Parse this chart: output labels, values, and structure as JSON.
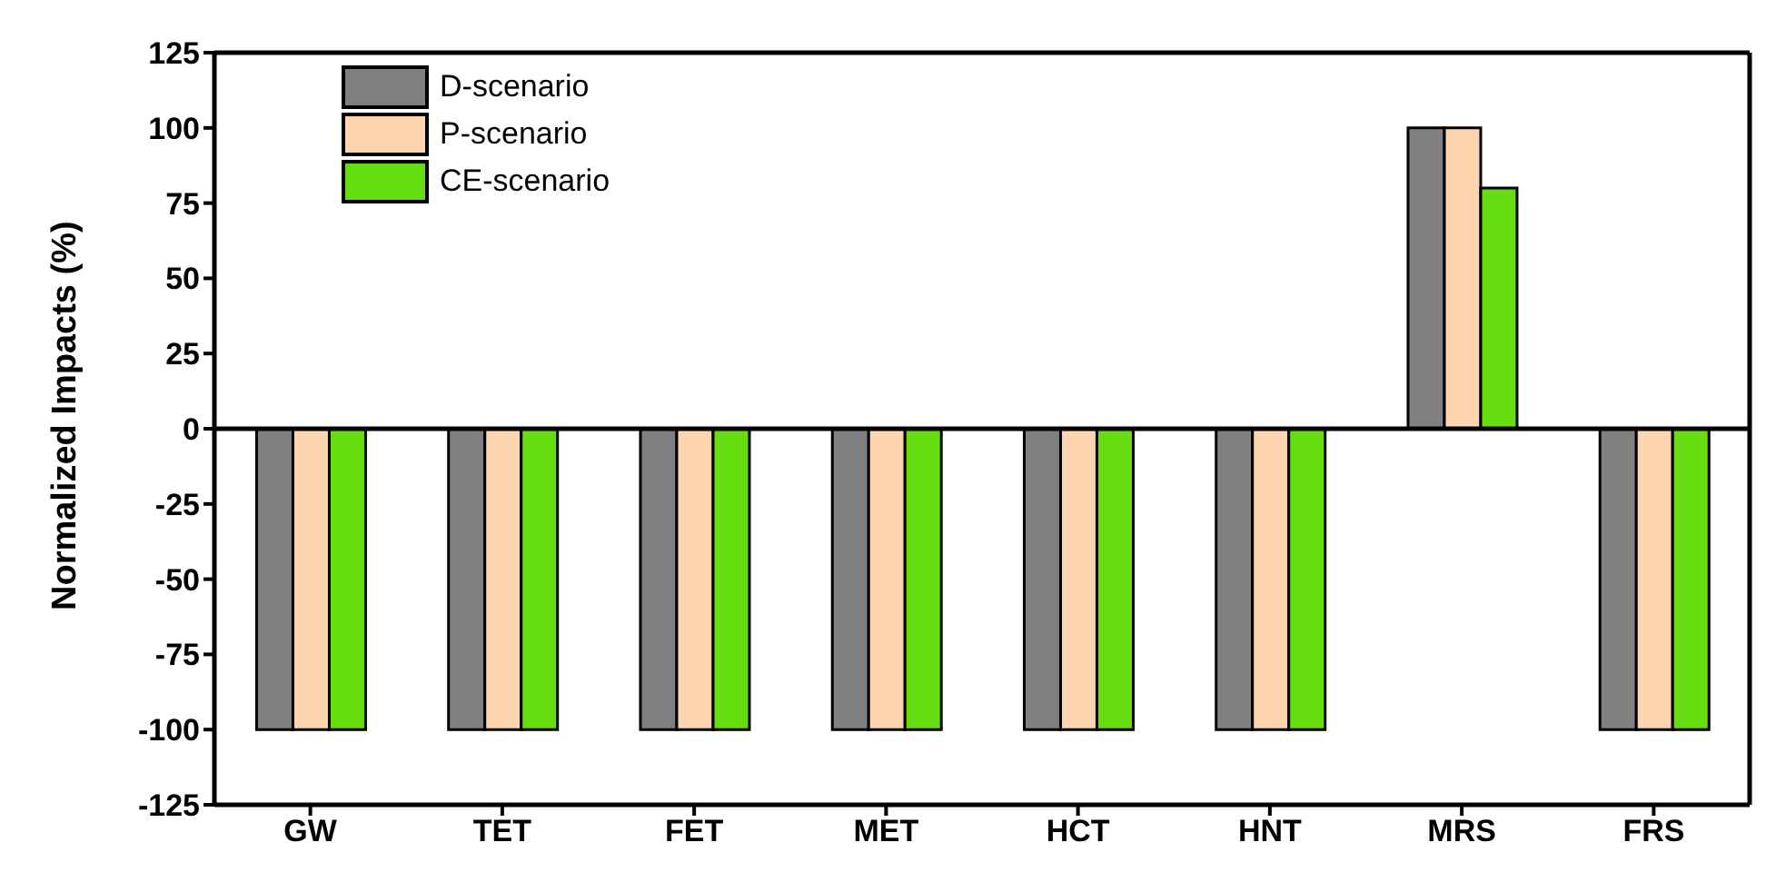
{
  "chart_data": {
    "type": "bar",
    "ylabel": "Normalized Impacts (%)",
    "categories": [
      "GW",
      "TET",
      "FET",
      "MET",
      "HCT",
      "HNT",
      "MRS",
      "FRS"
    ],
    "series": [
      {
        "name": "D-scenario",
        "color": "#808080",
        "values": [
          -100,
          -100,
          -100,
          -100,
          -100,
          -100,
          100,
          -100
        ]
      },
      {
        "name": "P-scenario",
        "color": "#fdd5b1",
        "values": [
          -100,
          -100,
          -100,
          -100,
          -100,
          -100,
          100,
          -100
        ]
      },
      {
        "name": "CE-scenario",
        "color": "#66dd11",
        "values": [
          -100,
          -100,
          -100,
          -100,
          -100,
          -100,
          80,
          -100
        ]
      }
    ],
    "ylim": [
      -125,
      125
    ],
    "yticks": [
      -125,
      -100,
      -75,
      -50,
      -25,
      0,
      25,
      50,
      75,
      100,
      125
    ],
    "ref_lines": [
      {
        "axis": "y",
        "value": 0,
        "color": "#000000"
      }
    ],
    "grid": false,
    "legend": "top left"
  }
}
